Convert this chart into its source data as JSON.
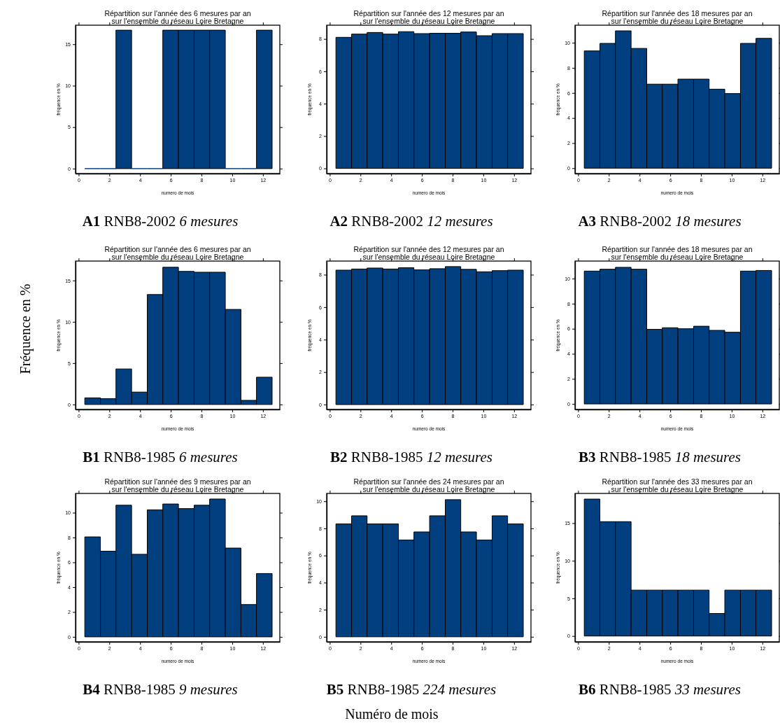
{
  "chart_data": [
    {
      "type": "histogram",
      "title": "Répartition sur l'année des 6 mesures par an\nsur l'ensemble du réseau  Loire Bretagne",
      "xlabel": "numero de mois",
      "ylabel": "fréquence en %",
      "annotations": [
        "A1 RNB8-2002 6 mesures"
      ],
      "color": "#023f7f",
      "bins": [
        0.4,
        1.42,
        2.43,
        3.45,
        4.47,
        5.48,
        6.5,
        7.52,
        8.53,
        9.55,
        10.57,
        11.58,
        12.6
      ],
      "values": [
        0,
        0,
        16.7,
        0,
        0,
        16.7,
        16.7,
        16.7,
        16.7,
        0,
        0,
        16.7
      ],
      "xlim": [
        -0.2,
        13.1
      ],
      "xticks": [
        0,
        2,
        4,
        6,
        8,
        10,
        12
      ],
      "ylim": [
        -0.6,
        17.3
      ],
      "yticks": [
        0,
        5,
        10,
        15
      ]
    },
    {
      "type": "histogram",
      "title": "Répartition sur l'année des 12 mesures par an\nsur l'ensemble du réseau  Loire Bretagne",
      "xlabel": "numero de mois",
      "ylabel": "fréquence en %",
      "annotations": [
        "A2 RNB8-2002 12 mesures"
      ],
      "color": "#023f7f",
      "bins": [
        0.4,
        1.42,
        2.43,
        3.45,
        4.47,
        5.48,
        6.5,
        7.52,
        8.53,
        9.55,
        10.57,
        11.58,
        12.6
      ],
      "values": [
        8.1,
        8.3,
        8.4,
        8.3,
        8.45,
        8.33,
        8.35,
        8.35,
        8.43,
        8.2,
        8.33,
        8.33
      ],
      "xlim": [
        -0.2,
        13.1
      ],
      "xticks": [
        0,
        2,
        4,
        6,
        8,
        10,
        12
      ],
      "ylim": [
        -0.32,
        8.85
      ],
      "yticks": [
        0,
        2,
        4,
        6,
        8
      ]
    },
    {
      "type": "histogram",
      "title": "Répartition sur l'année des 18 mesures par an\nsur l'ensemble du réseau  Loire Bretagne",
      "xlabel": "numero de mois",
      "ylabel": "fréquence en %",
      "annotations": [
        "A3 RNB8-2002 18 mesures"
      ],
      "color": "#023f7f",
      "bins": [
        0.4,
        1.42,
        2.43,
        3.45,
        4.47,
        5.48,
        6.5,
        7.52,
        8.53,
        9.55,
        10.57,
        11.58,
        12.6
      ],
      "values": [
        9.35,
        9.95,
        10.95,
        9.55,
        6.7,
        6.7,
        7.1,
        7.1,
        6.3,
        5.95,
        9.95,
        10.35
      ],
      "xlim": [
        -0.2,
        13.1
      ],
      "xticks": [
        0,
        2,
        4,
        6,
        8,
        10,
        12
      ],
      "ylim": [
        -0.43,
        11.4
      ],
      "yticks": [
        0,
        2,
        4,
        6,
        8,
        10
      ]
    },
    {
      "type": "histogram",
      "title": "Répartition sur l'année des 6 mesures par an\nsur l'ensemble du réseau  Loire Bretagne",
      "xlabel": "numero de mois",
      "ylabel": "fréquence en %",
      "annotations": [
        "B1 RNB8-1985 6 mesures"
      ],
      "color": "#023f7f",
      "bins": [
        0.4,
        1.42,
        2.43,
        3.45,
        4.47,
        5.48,
        6.5,
        7.52,
        8.53,
        9.55,
        10.57,
        11.58,
        12.6
      ],
      "values": [
        0.8,
        0.7,
        4.3,
        1.5,
        13.3,
        16.6,
        16.1,
        16,
        16,
        11.5,
        0.5,
        3.3
      ],
      "xlim": [
        -0.2,
        13.1
      ],
      "xticks": [
        0,
        2,
        4,
        6,
        8,
        10,
        12
      ],
      "ylim": [
        -0.6,
        17.35
      ],
      "yticks": [
        0,
        5,
        10,
        15
      ]
    },
    {
      "type": "histogram",
      "title": "Répartition sur l'année des 12 mesures par an\nsur l'ensemble du réseau  Loire Bretagne",
      "xlabel": "numero de mois",
      "ylabel": "fréquence en %",
      "annotations": [
        "B2 RNB8-1985 12 mesures"
      ],
      "color": "#023f7f",
      "bins": [
        0.4,
        1.42,
        2.43,
        3.45,
        4.47,
        5.48,
        6.5,
        7.52,
        8.53,
        9.55,
        10.57,
        11.58,
        12.6
      ],
      "values": [
        8.28,
        8.35,
        8.41,
        8.35,
        8.43,
        8.3,
        8.37,
        8.5,
        8.33,
        8.18,
        8.25,
        8.28
      ],
      "xlim": [
        -0.2,
        13.1
      ],
      "xticks": [
        0,
        2,
        4,
        6,
        8,
        10,
        12
      ],
      "ylim": [
        -0.3,
        8.84
      ],
      "yticks": [
        0,
        2,
        4,
        6,
        8
      ]
    },
    {
      "type": "histogram",
      "title": "Répartition sur l'année des 18 mesures par an\nsur l'ensemble du réseau  Loire Bretagne",
      "xlabel": "numero de mois",
      "ylabel": "fréquence en %",
      "annotations": [
        "B3 RNB8-1985 18 mesures"
      ],
      "color": "#023f7f",
      "bins": [
        0.4,
        1.42,
        2.43,
        3.45,
        4.47,
        5.48,
        6.5,
        7.52,
        8.53,
        9.55,
        10.57,
        11.58,
        12.6
      ],
      "values": [
        10.6,
        10.75,
        10.9,
        10.75,
        5.95,
        6.08,
        6,
        6.2,
        5.87,
        5.72,
        10.6,
        10.65
      ],
      "xlim": [
        -0.2,
        13.1
      ],
      "xticks": [
        0,
        2,
        4,
        6,
        8,
        10,
        12
      ],
      "ylim": [
        -0.44,
        11.4
      ],
      "yticks": [
        0,
        2,
        4,
        6,
        8,
        10
      ]
    },
    {
      "type": "histogram",
      "title": "Répartition sur l'année des 9 mesures par an\nsur l'ensemble du réseau  Loire Bretagne",
      "xlabel": "numero de mois",
      "ylabel": "fréquence en %",
      "annotations": [
        "B4 RNB8-1985 9 mesures"
      ],
      "color": "#023f7f",
      "bins": [
        0.4,
        1.42,
        2.43,
        3.45,
        4.47,
        5.48,
        6.5,
        7.52,
        8.53,
        9.55,
        10.57,
        11.58,
        12.6
      ],
      "values": [
        8.05,
        6.9,
        10.6,
        6.65,
        10.23,
        10.7,
        10.33,
        10.6,
        11.1,
        7.15,
        2.6,
        5.1
      ],
      "xlim": [
        -0.2,
        13.1
      ],
      "xticks": [
        0,
        2,
        4,
        6,
        8,
        10,
        12
      ],
      "ylim": [
        -0.4,
        11.55
      ],
      "yticks": [
        0,
        2,
        4,
        6,
        8,
        10
      ]
    },
    {
      "type": "histogram",
      "title": "Répartition sur l'année des 24 mesures par an\nsur l'ensemble du réseau  Loire Bretagne",
      "xlabel": "numero de mois",
      "ylabel": "fréquence en %",
      "annotations": [
        "B5 RNB8-1985 224 mesures"
      ],
      "color": "#023f7f",
      "bins": [
        0.4,
        1.42,
        2.43,
        3.45,
        4.47,
        5.48,
        6.5,
        7.52,
        8.53,
        9.55,
        10.57,
        11.58,
        12.6
      ],
      "values": [
        8.33,
        8.93,
        8.33,
        8.33,
        7.14,
        7.74,
        8.93,
        10.12,
        7.74,
        7.14,
        8.93,
        8.33
      ],
      "xlim": [
        -0.2,
        13.1
      ],
      "xticks": [
        0,
        2,
        4,
        6,
        8,
        10,
        12
      ],
      "ylim": [
        -0.37,
        10.58
      ],
      "yticks": [
        0,
        2,
        4,
        6,
        8,
        10
      ]
    },
    {
      "type": "histogram",
      "title": "Répartition sur l'année des 33 mesures par an\nsur l'ensemble du réseau  Loire Bretagne",
      "xlabel": "numero de mois",
      "ylabel": "fréquence en %",
      "annotations": [
        "B6 RNB8-1985 33 mesures"
      ],
      "color": "#023f7f",
      "bins": [
        0.4,
        1.42,
        2.43,
        3.45,
        4.47,
        5.48,
        6.5,
        7.52,
        8.53,
        9.55,
        10.57,
        11.58,
        12.6
      ],
      "values": [
        18.2,
        15.2,
        15.2,
        6.1,
        6.1,
        6.1,
        6.1,
        6.1,
        3,
        6.1,
        6.1,
        6.1
      ],
      "xlim": [
        -0.2,
        13.1
      ],
      "xticks": [
        0,
        2,
        4,
        6,
        8,
        10,
        12
      ],
      "ylim": [
        -0.77,
        18.95
      ],
      "yticks": [
        0,
        5,
        10,
        15
      ]
    },
    {
      "type": "other",
      "xlabel": "Numéro de mois",
      "ylabel": "Fréquence en %"
    }
  ]
}
